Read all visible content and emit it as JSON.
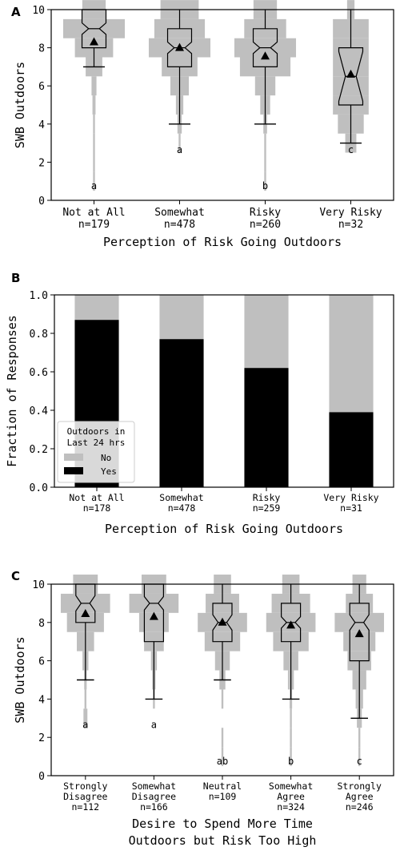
{
  "chart_data": [
    {
      "panel": "A",
      "type": "box",
      "ylabel": "SWB Outdoors",
      "xlabel": "Perception of Risk Going Outdoors",
      "ylim": [
        0,
        10
      ],
      "yticks": [
        "0",
        "2",
        "4",
        "6",
        "8",
        "10"
      ],
      "categories": [
        {
          "label": "Not at All",
          "n": "n=179",
          "sig": "a",
          "q1": 8,
          "median": 9,
          "q3": 10,
          "mean": 8.3,
          "wlo": 7,
          "whi": 10,
          "notch": 0.3,
          "hist": [
            [
              10,
              0.38
            ],
            [
              9,
              1.0
            ],
            [
              8,
              0.62
            ],
            [
              7,
              0.27
            ],
            [
              6,
              0.08
            ],
            [
              5,
              0.05
            ],
            [
              4,
              0.02
            ],
            [
              3,
              0.015
            ],
            [
              2,
              0.01
            ],
            [
              1,
              0.008
            ]
          ]
        },
        {
          "label": "Somewhat",
          "n": "n=478",
          "sig": "a",
          "q1": 7,
          "median": 8,
          "q3": 9,
          "mean": 8.0,
          "wlo": 4,
          "whi": 10,
          "notch": 0.3,
          "hist": [
            [
              10,
              0.62
            ],
            [
              9,
              0.82
            ],
            [
              8,
              1.0
            ],
            [
              7,
              0.58
            ],
            [
              6,
              0.3
            ],
            [
              5,
              0.12
            ],
            [
              4,
              0.07
            ],
            [
              3,
              0.03
            ]
          ]
        },
        {
          "label": "Risky",
          "n": "n=260",
          "sig": "b",
          "q1": 7,
          "median": 8,
          "q3": 9,
          "mean": 7.55,
          "wlo": 4,
          "whi": 10,
          "notch": 0.3,
          "hist": [
            [
              10,
              0.38
            ],
            [
              9,
              0.68
            ],
            [
              8,
              1.0
            ],
            [
              7,
              0.82
            ],
            [
              6,
              0.33
            ],
            [
              5,
              0.16
            ],
            [
              4,
              0.06
            ],
            [
              3,
              0.02
            ],
            [
              2,
              0.015
            ],
            [
              1,
              0.01
            ]
          ]
        },
        {
          "label": "Very Risky",
          "n": "n=32",
          "sig": "c",
          "q1": 5,
          "median": 6.5,
          "q3": 8,
          "mean": 6.6,
          "wlo": 3,
          "whi": 10,
          "notch": 1.3,
          "hist": [
            [
              10,
              0.12
            ],
            [
              9,
              0.58
            ],
            [
              8,
              0.58
            ],
            [
              7,
              0.58
            ],
            [
              6,
              0.58
            ],
            [
              5,
              0.58
            ],
            [
              4,
              0.42
            ],
            [
              3,
              0.18
            ]
          ]
        }
      ]
    },
    {
      "panel": "B",
      "type": "bar",
      "ylabel": "Fraction of Responses",
      "xlabel": "Perception of Risk Going Outdoors",
      "ylim": [
        0,
        1.0
      ],
      "yticks": [
        "0.0",
        "0.2",
        "0.4",
        "0.6",
        "0.8",
        "1.0"
      ],
      "categories": [
        "Not at All",
        "Somewhat",
        "Risky",
        "Very Risky"
      ],
      "ns": [
        "n=178",
        "n=478",
        "n=259",
        "n=31"
      ],
      "series": [
        {
          "name": "Yes",
          "values": [
            0.87,
            0.77,
            0.62,
            0.39
          ]
        },
        {
          "name": "No",
          "values": [
            0.13,
            0.23,
            0.38,
            0.61
          ]
        }
      ],
      "legend": {
        "title_line1": "Outdoors in",
        "title_line2": "Last 24 hrs",
        "placement": "lower-left"
      }
    },
    {
      "panel": "C",
      "type": "box",
      "ylabel": "SWB Outdoors",
      "xlabel_line1": "Desire to Spend More Time",
      "xlabel_line2": "Outdoors but Risk Too High",
      "ylim": [
        0,
        10
      ],
      "yticks": [
        "0",
        "2",
        "4",
        "6",
        "8",
        "10"
      ],
      "categories": [
        {
          "label1": "Strongly",
          "label2": "Disagree",
          "n": "n=112",
          "sig": "a",
          "q1": 8,
          "median": 9,
          "q3": 10,
          "mean": 8.45,
          "wlo": 5,
          "whi": 10,
          "notch": 0.4,
          "hist": [
            [
              10,
              0.5
            ],
            [
              9,
              1.0
            ],
            [
              8,
              0.75
            ],
            [
              7,
              0.35
            ],
            [
              6,
              0.12
            ],
            [
              5,
              0.05
            ],
            [
              4,
              0.03
            ],
            [
              3,
              0.08
            ]
          ]
        },
        {
          "label1": "Somewhat",
          "label2": "Disagree",
          "n": "n=166",
          "sig": "a",
          "q1": 7,
          "median": 9,
          "q3": 10,
          "mean": 8.3,
          "wlo": 4,
          "whi": 10,
          "notch": 0.35,
          "hist": [
            [
              10,
              0.5
            ],
            [
              9,
              1.0
            ],
            [
              8,
              0.6
            ],
            [
              7,
              0.4
            ],
            [
              6,
              0.12
            ],
            [
              5,
              0.07
            ],
            [
              4,
              0.03
            ]
          ]
        },
        {
          "label1": "Neutral",
          "label2": "",
          "n": "n=109",
          "sig": "ab",
          "q1": 7,
          "median": 8,
          "q3": 9,
          "mean": 8.0,
          "wlo": 5,
          "whi": 10,
          "notch": 0.4,
          "hist": [
            [
              10,
              0.35
            ],
            [
              9,
              0.68
            ],
            [
              8,
              1.0
            ],
            [
              7,
              0.72
            ],
            [
              6,
              0.3
            ],
            [
              5,
              0.12
            ],
            [
              4,
              0.02
            ],
            [
              2,
              0.02
            ],
            [
              1,
              0.015
            ]
          ]
        },
        {
          "label1": "Somewhat",
          "label2": "Agree",
          "n": "n=324",
          "sig": "b",
          "q1": 7,
          "median": 8,
          "q3": 9,
          "mean": 7.85,
          "wlo": 4,
          "whi": 10,
          "notch": 0.3,
          "hist": [
            [
              10,
              0.35
            ],
            [
              9,
              0.78
            ],
            [
              8,
              1.0
            ],
            [
              7,
              0.72
            ],
            [
              6,
              0.3
            ],
            [
              5,
              0.12
            ],
            [
              4,
              0.05
            ],
            [
              3,
              0.01
            ],
            [
              2,
              0.01
            ],
            [
              1,
              0.008
            ]
          ]
        },
        {
          "label1": "Strongly",
          "label2": "Agree",
          "n": "n=246",
          "sig": "c",
          "q1": 6,
          "median": 8,
          "q3": 9,
          "mean": 7.4,
          "wlo": 3,
          "whi": 10,
          "notch": 0.4,
          "hist": [
            [
              10,
              0.28
            ],
            [
              9,
              0.55
            ],
            [
              8,
              1.0
            ],
            [
              7,
              0.65
            ],
            [
              6,
              0.48
            ],
            [
              5,
              0.28
            ],
            [
              4,
              0.15
            ],
            [
              3,
              0.1
            ],
            [
              2,
              0.02
            ],
            [
              1,
              0.015
            ]
          ]
        }
      ]
    }
  ],
  "colors": {
    "yes": "#000000",
    "no": "#bfbfbf",
    "hist": "#bfbfbf"
  }
}
